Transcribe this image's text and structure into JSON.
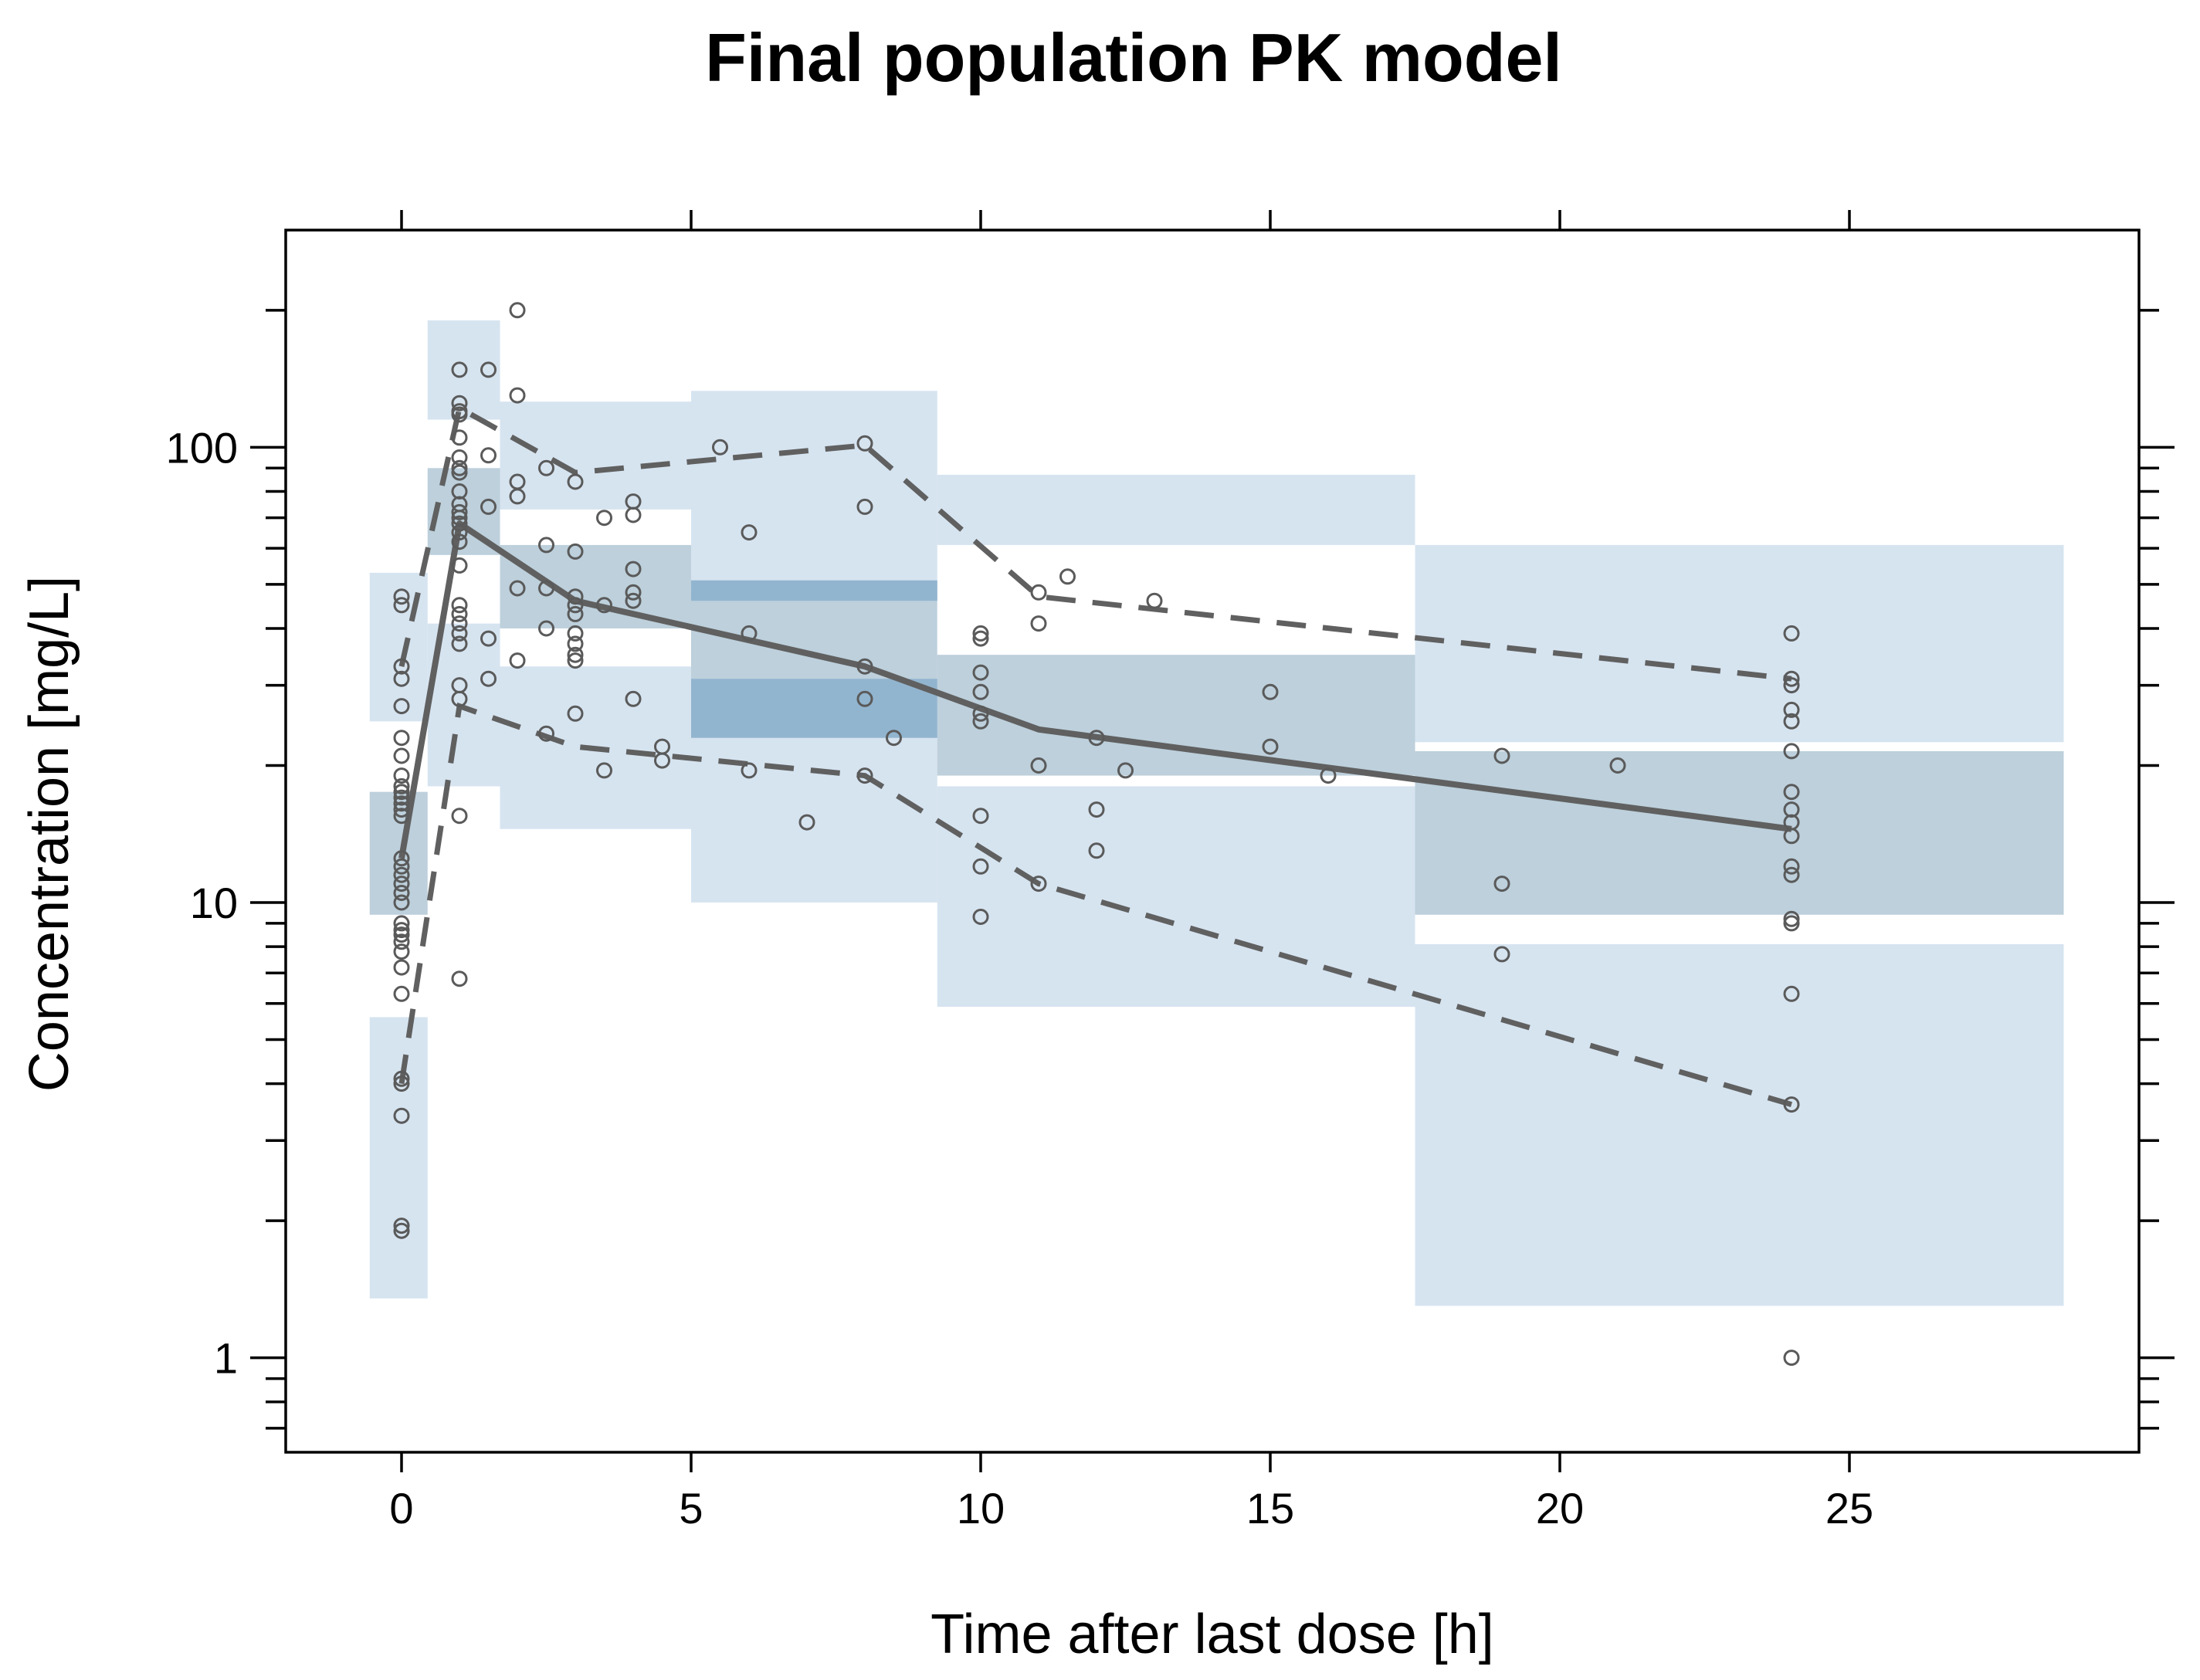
{
  "chart_data": {
    "type": "scatter",
    "title": "Final population PK model",
    "xlabel": "Time after last dose [h]",
    "ylabel": "Concentration [mg/L]",
    "xlim": [
      -2,
      30
    ],
    "ylim": [
      0.62,
      300
    ],
    "y_scale": "log10",
    "x_ticks": [
      0,
      5,
      10,
      15,
      20,
      25
    ],
    "x_tick_labels": [
      "0",
      "5",
      "10",
      "15",
      "20",
      "25"
    ],
    "y_ticks": [
      1,
      10,
      100
    ],
    "y_tick_labels": [
      "1",
      "10",
      "100"
    ],
    "y_minor_ticks": [
      0.7,
      0.8,
      0.9,
      2,
      3,
      4,
      5,
      6,
      7,
      8,
      9,
      20,
      30,
      40,
      50,
      60,
      70,
      80,
      90,
      200
    ],
    "grid": false,
    "legend": "none",
    "colors": {
      "outer_band": "#d6e4f0",
      "median_band": "#b1c8d6",
      "overlap_band": "#92b5cf",
      "lines": "#606060",
      "points": "#5a5a5a"
    },
    "bins": [
      {
        "x_range": [
          -0.55,
          0.45
        ],
        "low_ci": [
          1.35,
          5.6
        ],
        "median_ci": [
          9.4,
          17.5
        ],
        "high_ci": [
          25,
          53
        ]
      },
      {
        "x_range": [
          0.45,
          1.7
        ],
        "low_ci": [
          18,
          41
        ],
        "median_ci": [
          58,
          90
        ],
        "high_ci": [
          115,
          190
        ]
      },
      {
        "x_range": [
          1.7,
          5.0
        ],
        "low_ci": [
          14.5,
          33
        ],
        "median_ci": [
          40,
          61
        ],
        "high_ci": [
          73,
          126
        ]
      },
      {
        "x_range": [
          5.0,
          9.25
        ],
        "low_ci": [
          10,
          31
        ],
        "median_ci": [
          23,
          51
        ],
        "high_ci": [
          46,
          133
        ]
      },
      {
        "x_range": [
          9.25,
          17.5
        ],
        "low_ci": [
          5.9,
          18
        ],
        "median_ci": [
          19,
          35
        ],
        "high_ci": [
          61,
          87
        ]
      },
      {
        "x_range": [
          17.5,
          28.7
        ],
        "low_ci": [
          1.3,
          8.1
        ],
        "median_ci": [
          9.4,
          21.5
        ],
        "high_ci": [
          22.5,
          61
        ]
      }
    ],
    "series": [
      {
        "name": "",
        "kind": "median",
        "x": [
          0,
          1,
          3,
          8,
          11,
          24
        ],
        "y": [
          12.5,
          68,
          46,
          33,
          24,
          14.5
        ]
      },
      {
        "name": "",
        "kind": "upper_percentile",
        "x": [
          0,
          1,
          3,
          8,
          11,
          24
        ],
        "y": [
          33,
          122,
          88,
          101,
          47,
          31
        ]
      },
      {
        "name": "",
        "kind": "lower_percentile",
        "x": [
          0,
          1,
          3,
          8,
          11,
          24
        ],
        "y": [
          4,
          27,
          22,
          19,
          11,
          3.6
        ]
      }
    ],
    "observations": {
      "x": [
        0,
        0,
        0,
        0,
        0,
        0,
        0,
        0,
        0,
        0,
        0,
        0,
        0,
        0,
        0,
        0,
        0,
        0,
        0,
        0,
        0,
        0,
        0,
        0,
        0,
        0,
        0,
        0,
        0,
        0,
        0,
        0,
        1,
        1,
        1,
        1,
        1,
        1,
        1,
        1,
        1,
        1,
        1,
        1,
        1,
        1,
        1,
        1,
        1,
        1,
        1,
        1,
        1,
        1,
        1,
        1,
        1,
        1.5,
        1.5,
        1.5,
        1.5,
        1.5,
        2,
        2,
        2,
        2,
        2,
        2,
        2.5,
        2.5,
        2.5,
        2.5,
        2.5,
        3,
        3,
        3,
        3,
        3,
        3,
        3,
        3,
        3,
        3,
        3.5,
        3.5,
        3.5,
        4,
        4,
        4,
        4,
        4,
        4,
        4.5,
        4.5,
        5.5,
        6,
        6,
        6,
        7,
        8,
        8,
        8,
        8,
        8,
        8.5,
        10,
        10,
        10,
        10,
        10,
        10,
        10,
        10,
        10,
        11,
        11,
        11,
        11,
        11.5,
        12,
        12,
        12,
        12.5,
        13,
        15,
        15,
        16,
        19,
        19,
        19,
        21,
        24,
        24,
        24,
        24,
        24,
        24,
        24,
        24,
        24,
        24,
        24,
        24,
        24,
        24,
        24,
        24,
        24
      ],
      "y": [
        47,
        45,
        33,
        31,
        27,
        23,
        21,
        19,
        18,
        17.5,
        17,
        16.5,
        16,
        15.5,
        12.5,
        12,
        11.5,
        11,
        10.5,
        10,
        9,
        8.7,
        8.5,
        8.2,
        7.8,
        7.2,
        6.3,
        4.1,
        4,
        3.4,
        1.95,
        1.9,
        148,
        125,
        120,
        118,
        105,
        95,
        90,
        88,
        80,
        75,
        72,
        70,
        68,
        65,
        62,
        55,
        45,
        43,
        41,
        39,
        37,
        30,
        28,
        15.5,
        6.8,
        148,
        96,
        74,
        38,
        31,
        200,
        130,
        84,
        78,
        49,
        34,
        90,
        61,
        49,
        40,
        23.5,
        84,
        59,
        47,
        45,
        43,
        39,
        37,
        35,
        34,
        26,
        70,
        45,
        19.5,
        76,
        71,
        54,
        48,
        46,
        28,
        22,
        20.5,
        100,
        65,
        39,
        19.5,
        15,
        102,
        74,
        33,
        28,
        19,
        23,
        39,
        38,
        32,
        29,
        26,
        25,
        15.5,
        9.3,
        12,
        48,
        41,
        20,
        11,
        52,
        23,
        16,
        13,
        19.5,
        46,
        29,
        22,
        19,
        21,
        11,
        7.7,
        20,
        39,
        31,
        30,
        26.5,
        25,
        21.5,
        17.5,
        16,
        15,
        14,
        12,
        11.5,
        9.2,
        9,
        6.3,
        3.6,
        1
      ]
    }
  }
}
